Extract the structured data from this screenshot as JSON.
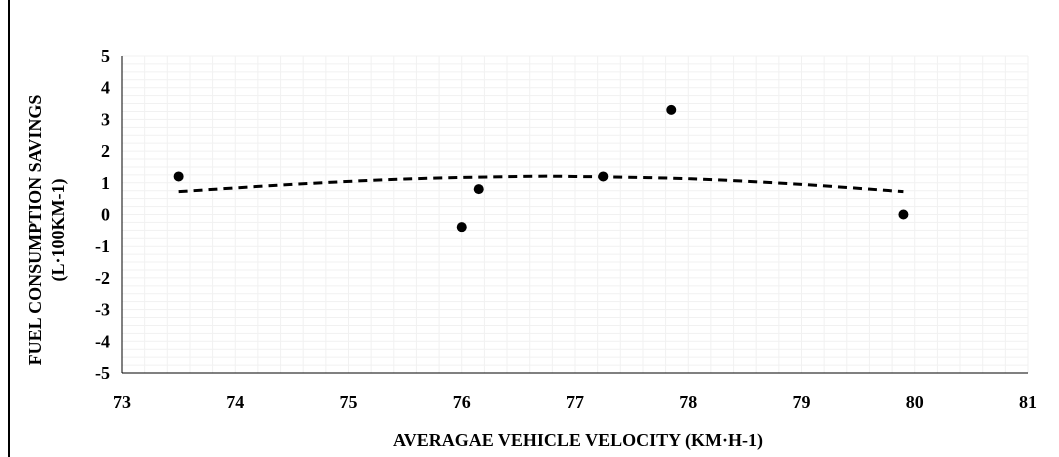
{
  "chart_data": {
    "type": "scatter",
    "xlabel": "AVERAGAE VEHICLE VELOCITY (KM·H-1)",
    "ylabel": [
      "FUEL CONSUMPTION SAVINGS",
      "(L·100KM-1)"
    ],
    "xlim": [
      73,
      81
    ],
    "ylim": [
      -5,
      5
    ],
    "x_ticks": [
      "73",
      "74",
      "75",
      "76",
      "77",
      "78",
      "79",
      "80",
      "81"
    ],
    "y_ticks": [
      "5",
      "4",
      "3",
      "2",
      "1",
      "0",
      "-1",
      "-2",
      "-3",
      "-4",
      "-5"
    ],
    "grid": true,
    "series": [
      {
        "points": [
          {
            "x": 73.5,
            "y": 1.2
          },
          {
            "x": 76.0,
            "y": -0.4
          },
          {
            "x": 76.15,
            "y": 0.8
          },
          {
            "x": 77.25,
            "y": 1.2
          },
          {
            "x": 77.85,
            "y": 3.3
          },
          {
            "x": 79.9,
            "y": 0.0
          }
        ],
        "color": "#000000"
      }
    ],
    "trendline": {
      "type": "polynomial-2",
      "style": "dashed",
      "color": "#000000",
      "x_range": [
        73.5,
        79.9
      ],
      "points": [
        {
          "x": 73.5,
          "y": 0.72
        },
        {
          "x": 74.5,
          "y": 0.95
        },
        {
          "x": 75.5,
          "y": 1.12
        },
        {
          "x": 76.5,
          "y": 1.2
        },
        {
          "x": 77.0,
          "y": 1.2
        },
        {
          "x": 78.0,
          "y": 1.13
        },
        {
          "x": 79.0,
          "y": 0.95
        },
        {
          "x": 79.9,
          "y": 0.72
        }
      ]
    }
  }
}
